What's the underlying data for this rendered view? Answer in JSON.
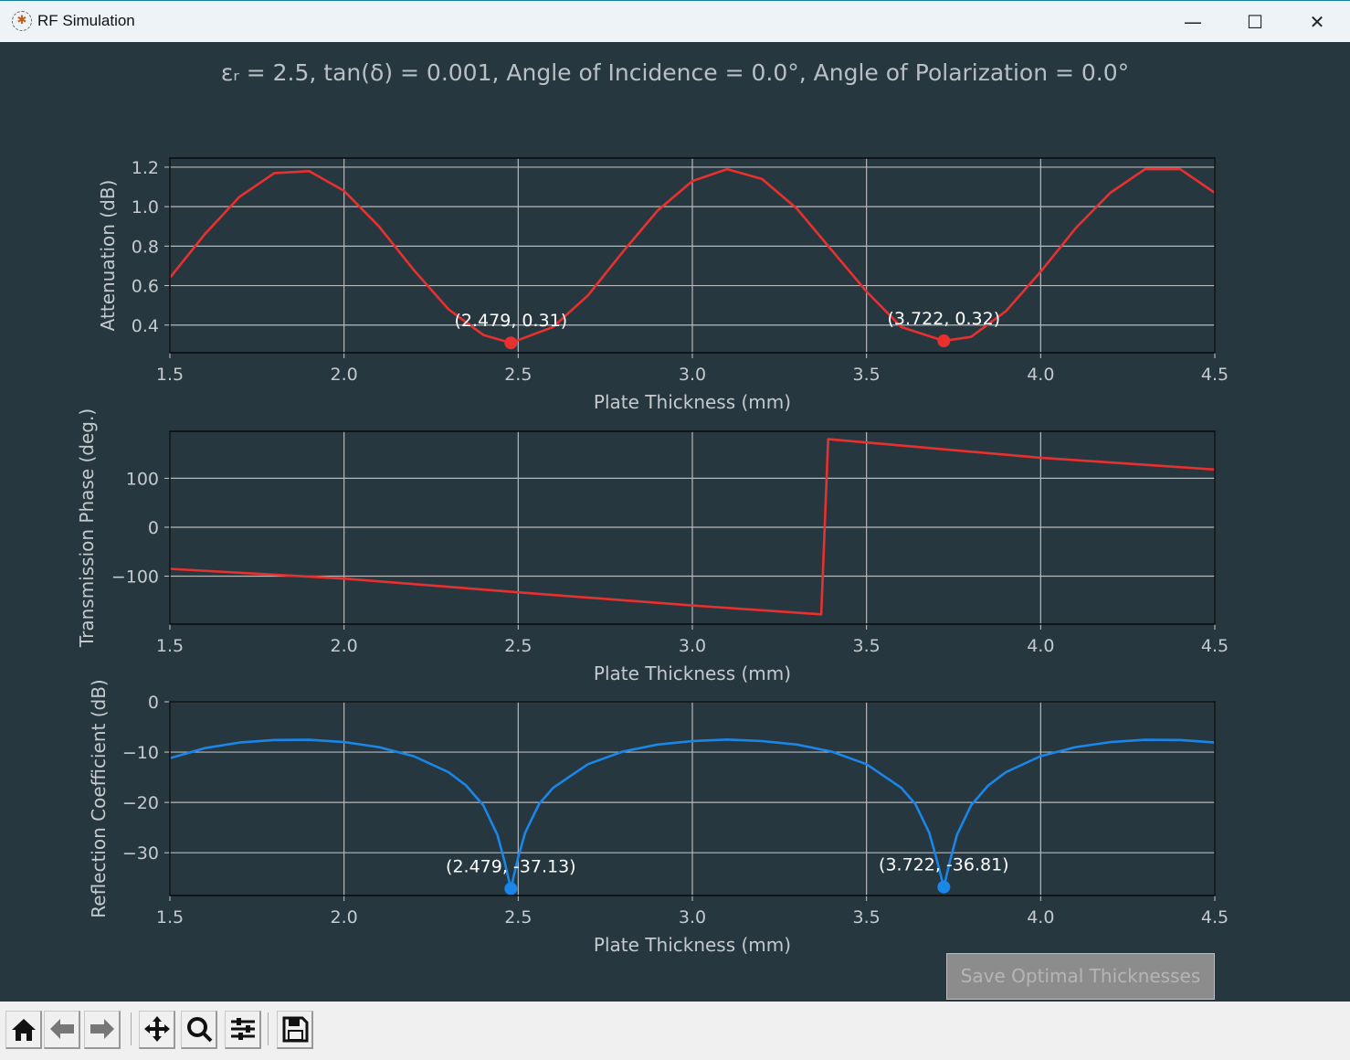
{
  "window": {
    "title": "RF Simulation",
    "minimize_icon": "minimize-icon",
    "maximize_icon": "maximize-icon",
    "close_icon": "close-icon"
  },
  "figure_title": "εᵣ = 2.5, tan(δ) = 0.001, Angle of Incidence = 0.0°, Angle of Polarization = 0.0°",
  "save_button": "Save Optimal Thicknesses",
  "toolbar": [
    "home-icon",
    "back-arrow-icon",
    "forward-arrow-icon",
    "pan-icon",
    "zoom-icon",
    "configure-subplots-icon",
    "save-icon"
  ],
  "colors": {
    "background": "#263740",
    "attenuation": "#e8302f",
    "phase": "#e8302f",
    "reflection": "#1a86e8",
    "grid": "#b8b8b8"
  },
  "chart_data": [
    {
      "type": "line",
      "xlabel": "Plate Thickness (mm)",
      "ylabel": "Attenuation (dB)",
      "xlim": [
        1.5,
        4.5
      ],
      "ylim": [
        0.26,
        1.246
      ],
      "xticks": [
        "1.5",
        "2.0",
        "2.5",
        "3.0",
        "3.5",
        "4.0",
        "4.5"
      ],
      "yticks": [
        "0.4",
        "0.6",
        "0.8",
        "1.0",
        "1.2"
      ],
      "grid": true,
      "color": "#e8302f",
      "x": [
        1.5,
        1.6,
        1.7,
        1.8,
        1.9,
        2.0,
        2.1,
        2.2,
        2.3,
        2.4,
        2.479,
        2.6,
        2.7,
        2.8,
        2.9,
        3.0,
        3.1,
        3.2,
        3.3,
        3.4,
        3.5,
        3.6,
        3.722,
        3.8,
        3.9,
        4.0,
        4.1,
        4.2,
        4.3,
        4.4,
        4.5
      ],
      "y": [
        0.64,
        0.86,
        1.05,
        1.17,
        1.18,
        1.08,
        0.9,
        0.68,
        0.48,
        0.35,
        0.31,
        0.39,
        0.55,
        0.77,
        0.98,
        1.13,
        1.19,
        1.14,
        0.99,
        0.78,
        0.57,
        0.39,
        0.32,
        0.34,
        0.47,
        0.67,
        0.89,
        1.07,
        1.19,
        1.19,
        1.07
      ],
      "markers": [
        {
          "x": 2.479,
          "y": 0.31,
          "label": "(2.479, 0.31)"
        },
        {
          "x": 3.722,
          "y": 0.32,
          "label": "(3.722, 0.32)"
        }
      ]
    },
    {
      "type": "line",
      "xlabel": "Plate Thickness (mm)",
      "ylabel": "Transmission Phase (deg.)",
      "xlim": [
        1.5,
        4.5
      ],
      "ylim": [
        -198,
        196
      ],
      "xticks": [
        "1.5",
        "2.0",
        "2.5",
        "3.0",
        "3.5",
        "4.0",
        "4.5"
      ],
      "yticks": [
        "−100",
        "0",
        "100"
      ],
      "grid": true,
      "color": "#e8302f",
      "x": [
        1.5,
        2.0,
        2.5,
        3.0,
        3.37,
        3.39,
        4.0,
        4.5
      ],
      "y": [
        -85,
        -105,
        -133,
        -160,
        -178,
        180,
        142,
        118
      ],
      "markers": []
    },
    {
      "type": "line",
      "xlabel": "Plate Thickness (mm)",
      "ylabel": "Reflection Coefficient (dB)",
      "xlim": [
        1.5,
        4.5
      ],
      "ylim": [
        -38.5,
        0
      ],
      "xticks": [
        "1.5",
        "2.0",
        "2.5",
        "3.0",
        "3.5",
        "4.0",
        "4.5"
      ],
      "yticks": [
        "−30",
        "−20",
        "−10",
        "0"
      ],
      "grid": true,
      "color": "#1a86e8",
      "x": [
        1.5,
        1.6,
        1.7,
        1.8,
        1.9,
        2.0,
        2.1,
        2.2,
        2.3,
        2.35,
        2.4,
        2.44,
        2.46,
        2.479,
        2.5,
        2.52,
        2.56,
        2.6,
        2.7,
        2.8,
        2.9,
        3.0,
        3.1,
        3.2,
        3.3,
        3.4,
        3.5,
        3.6,
        3.64,
        3.68,
        3.7,
        3.722,
        3.74,
        3.76,
        3.8,
        3.85,
        3.9,
        4.0,
        4.1,
        4.2,
        4.3,
        4.4,
        4.5
      ],
      "y": [
        -11.2,
        -9.2,
        -8.1,
        -7.6,
        -7.55,
        -8.0,
        -9.0,
        -10.8,
        -14.0,
        -16.6,
        -20.6,
        -26.4,
        -31.5,
        -37.13,
        -30.9,
        -26.0,
        -20.3,
        -17.1,
        -12.4,
        -9.9,
        -8.5,
        -7.8,
        -7.5,
        -7.8,
        -8.5,
        -9.9,
        -12.4,
        -17.1,
        -20.3,
        -26.0,
        -30.9,
        -36.81,
        -31.5,
        -26.4,
        -20.6,
        -16.6,
        -14.0,
        -10.8,
        -9.0,
        -8.0,
        -7.55,
        -7.6,
        -8.1
      ],
      "markers": [
        {
          "x": 2.479,
          "y": -37.13,
          "label": "(2.479, -37.13)"
        },
        {
          "x": 3.722,
          "y": -36.81,
          "label": "(3.722, -36.81)"
        }
      ]
    }
  ]
}
